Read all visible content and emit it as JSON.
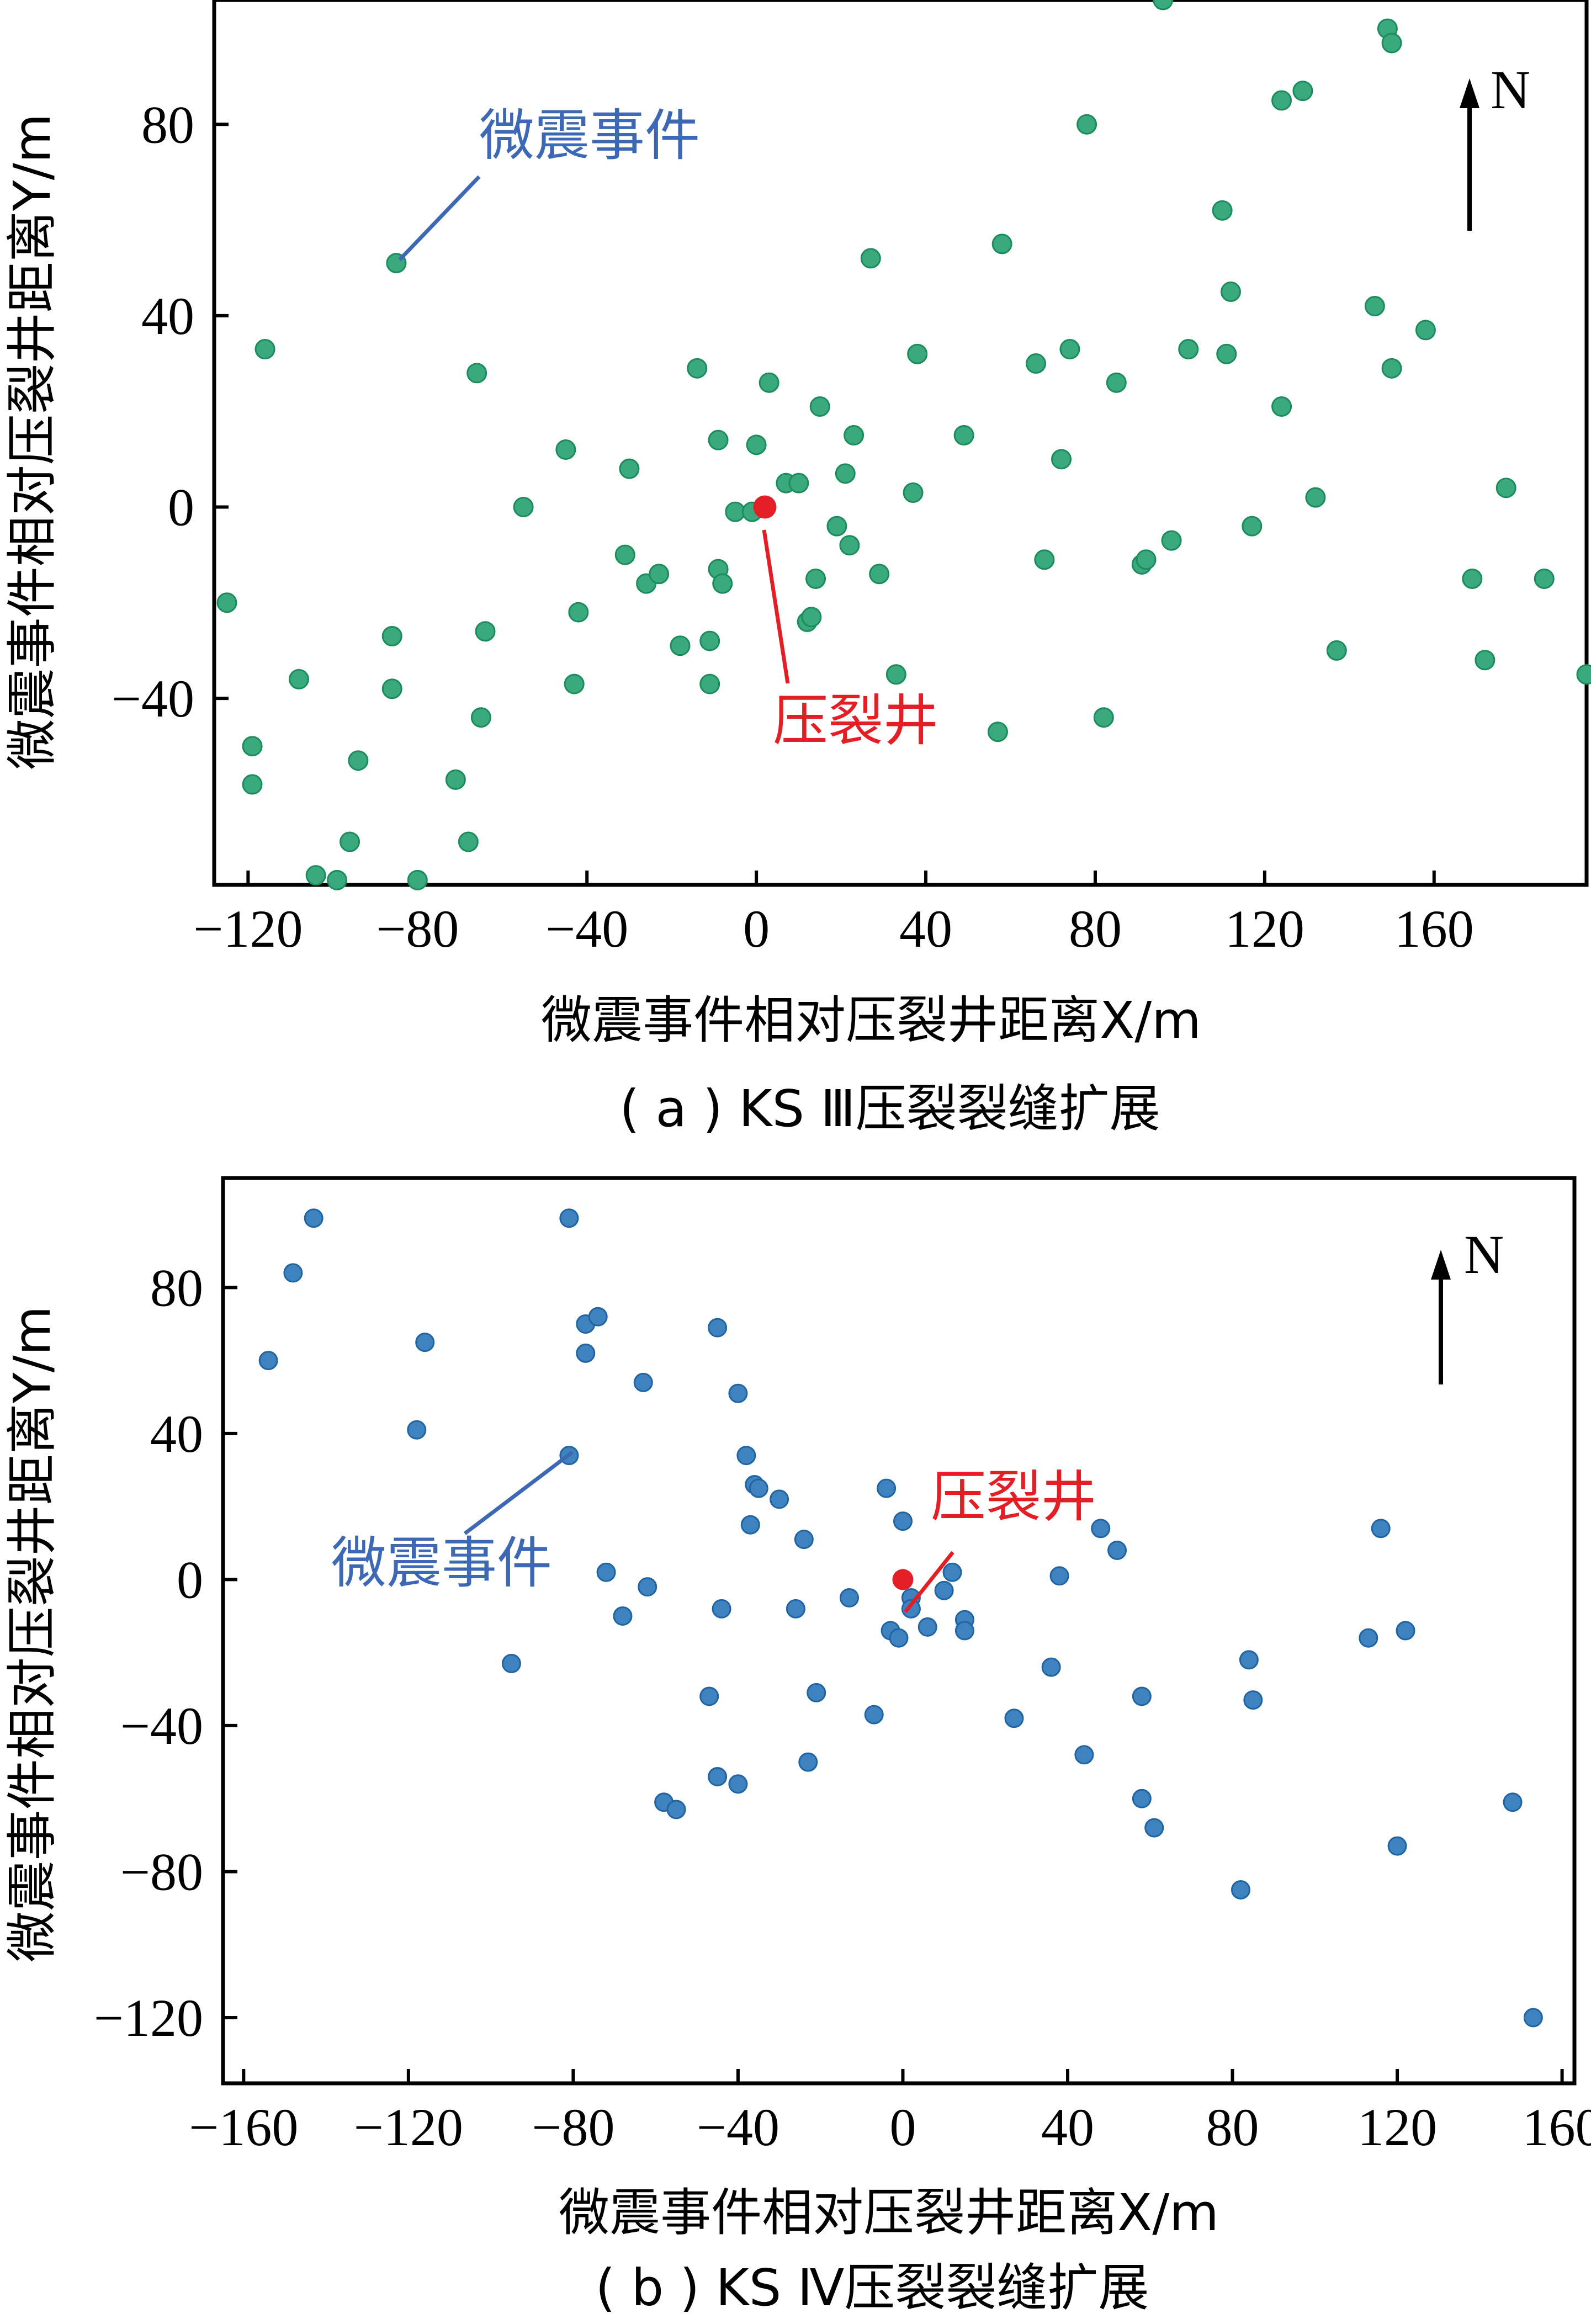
{
  "chart_data": [
    {
      "type": "scatter",
      "caption": "( a ) KS Ⅲ压裂裂缝扩展",
      "xlabel": "微震事件相对压裂井距离X/m",
      "ylabel": "微震事件相对压裂井距离Y/m",
      "xlim": [
        -128,
        196
      ],
      "ylim": [
        -79,
        106
      ],
      "xticks": [
        -120,
        -80,
        -40,
        0,
        40,
        80,
        120,
        160
      ],
      "yticks": [
        80,
        40,
        0,
        -40
      ],
      "xtick_labels": [
        "−120",
        "−80",
        "−40",
        "0",
        "40",
        "80",
        "120",
        "160"
      ],
      "ytick_labels": [
        "80",
        "40",
        "0",
        "−40"
      ],
      "north_label": "N",
      "event_label": "微震事件",
      "well_label": "压裂井",
      "event_color": "#3aa97c",
      "well_color": "#e41e25",
      "event_label_color": "#3d68b5",
      "well_label_color": "#e41e25",
      "well": [
        2,
        0
      ],
      "event_pointer": [
        -85,
        51
      ],
      "points": [
        [
          -85,
          51
        ],
        [
          -116,
          33
        ],
        [
          -125,
          -20
        ],
        [
          -108,
          -36
        ],
        [
          -119,
          -50
        ],
        [
          -119,
          -58
        ],
        [
          -94,
          -53
        ],
        [
          -96,
          -70
        ],
        [
          -104,
          -77
        ],
        [
          -99,
          -78
        ],
        [
          -80,
          -78
        ],
        [
          -86,
          -27
        ],
        [
          -86,
          -38
        ],
        [
          -71,
          -57
        ],
        [
          -68,
          -70
        ],
        [
          -65,
          -44
        ],
        [
          -66,
          28
        ],
        [
          -64,
          -26
        ],
        [
          -55,
          0
        ],
        [
          -45,
          12
        ],
        [
          -42,
          -22
        ],
        [
          -43,
          -37
        ],
        [
          -30,
          8
        ],
        [
          -31,
          -10
        ],
        [
          -26,
          -16
        ],
        [
          -23,
          -14
        ],
        [
          -18,
          -29
        ],
        [
          -14,
          29
        ],
        [
          -11,
          -28
        ],
        [
          -11,
          -37
        ],
        [
          -9,
          14
        ],
        [
          -9,
          -13
        ],
        [
          -8,
          -16
        ],
        [
          -5,
          -1
        ],
        [
          -1,
          -1
        ],
        [
          0,
          13
        ],
        [
          3,
          26
        ],
        [
          7,
          5
        ],
        [
          10,
          5
        ],
        [
          12,
          -24
        ],
        [
          13,
          -23
        ],
        [
          14,
          -15
        ],
        [
          15,
          21
        ],
        [
          19,
          -4
        ],
        [
          21,
          7
        ],
        [
          22,
          -8
        ],
        [
          23,
          15
        ],
        [
          27,
          52
        ],
        [
          29,
          -14
        ],
        [
          33,
          -35
        ],
        [
          37,
          3
        ],
        [
          38,
          32
        ],
        [
          49,
          15
        ],
        [
          57,
          -47
        ],
        [
          58,
          55
        ],
        [
          66,
          30
        ],
        [
          68,
          -11
        ],
        [
          72,
          10
        ],
        [
          74,
          33
        ],
        [
          78,
          80
        ],
        [
          82,
          -44
        ],
        [
          85,
          26
        ],
        [
          96,
          106
        ],
        [
          98,
          -7
        ],
        [
          91,
          -12
        ],
        [
          92,
          -11
        ],
        [
          102,
          33
        ],
        [
          110,
          62
        ],
        [
          111,
          32
        ],
        [
          112,
          45
        ],
        [
          117,
          -4
        ],
        [
          124,
          85
        ],
        [
          124,
          21
        ],
        [
          129,
          87
        ],
        [
          132,
          2
        ],
        [
          137,
          -30
        ],
        [
          146,
          42
        ],
        [
          149,
          100
        ],
        [
          150,
          97
        ],
        [
          150,
          29
        ],
        [
          158,
          37
        ],
        [
          169,
          -15
        ],
        [
          172,
          -32
        ],
        [
          177,
          4
        ],
        [
          186,
          -15
        ],
        [
          196,
          -35
        ]
      ]
    },
    {
      "type": "scatter",
      "caption": "( b ) KS Ⅳ压裂裂缝扩展",
      "xlabel": "微震事件相对压裂井距离X/m",
      "ylabel": "微震事件相对压裂井距离Y/m",
      "xlim": [
        -165,
        163
      ],
      "ylim": [
        -138,
        110
      ],
      "xticks": [
        -160,
        -120,
        -80,
        -40,
        0,
        40,
        80,
        120,
        160
      ],
      "yticks": [
        80,
        40,
        0,
        -40,
        -80,
        -120
      ],
      "xtick_labels": [
        "−160",
        "−120",
        "−80",
        "−40",
        "0",
        "40",
        "80",
        "120",
        "160"
      ],
      "ytick_labels": [
        "80",
        "40",
        "0",
        "−40",
        "−80",
        "−120"
      ],
      "north_label": "N",
      "event_label": "微震事件",
      "well_label": "压裂井",
      "event_color": "#3f82c0",
      "well_color": "#e41e25",
      "event_label_color": "#3d68b5",
      "well_label_color": "#e41e25",
      "well": [
        0,
        0
      ],
      "event_pointer": [
        -81,
        34
      ],
      "points": [
        [
          -143,
          99
        ],
        [
          -148,
          84
        ],
        [
          -154,
          60
        ],
        [
          -116,
          65
        ],
        [
          -118,
          41
        ],
        [
          -81,
          99
        ],
        [
          -77,
          70
        ],
        [
          -74,
          72
        ],
        [
          -77,
          62
        ],
        [
          -63,
          54
        ],
        [
          -45,
          69
        ],
        [
          -40,
          51
        ],
        [
          -38,
          34
        ],
        [
          -36,
          26
        ],
        [
          -35,
          25
        ],
        [
          -37,
          15
        ],
        [
          -30,
          22
        ],
        [
          -24,
          11
        ],
        [
          -81,
          34
        ],
        [
          -72,
          2
        ],
        [
          -68,
          -10
        ],
        [
          -62,
          -2
        ],
        [
          -95,
          -23
        ],
        [
          -44,
          -8
        ],
        [
          -26,
          -8
        ],
        [
          -13,
          -5
        ],
        [
          -47,
          -32
        ],
        [
          -21,
          -31
        ],
        [
          -7,
          -37
        ],
        [
          -45,
          -54
        ],
        [
          -40,
          -56
        ],
        [
          -23,
          -50
        ],
        [
          -58,
          -61
        ],
        [
          -55,
          -63
        ],
        [
          -4,
          25
        ],
        [
          0,
          16
        ],
        [
          2,
          -5
        ],
        [
          2,
          -8
        ],
        [
          -3,
          -14
        ],
        [
          -1,
          -16
        ],
        [
          6,
          -13
        ],
        [
          10,
          -3
        ],
        [
          12,
          2
        ],
        [
          15,
          -11
        ],
        [
          15,
          -14
        ],
        [
          27,
          -38
        ],
        [
          36,
          -24
        ],
        [
          38,
          1
        ],
        [
          44,
          -48
        ],
        [
          48,
          14
        ],
        [
          52,
          8
        ],
        [
          58,
          -32
        ],
        [
          58,
          -60
        ],
        [
          61,
          -68
        ],
        [
          82,
          -85
        ],
        [
          84,
          -22
        ],
        [
          85,
          -33
        ],
        [
          113,
          -16
        ],
        [
          116,
          14
        ],
        [
          120,
          -73
        ],
        [
          122,
          -14
        ],
        [
          148,
          -61
        ],
        [
          153,
          -120
        ]
      ]
    }
  ]
}
